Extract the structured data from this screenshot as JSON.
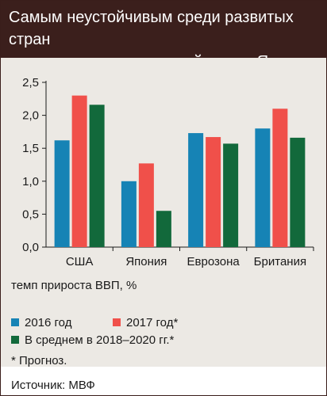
{
  "header": {
    "title": "Самым неустойчивым среди развитых стран\nожидается экономический рост в Японии"
  },
  "chart_data": {
    "type": "bar",
    "categories": [
      "США",
      "Япония",
      "Еврозона",
      "Британия"
    ],
    "series": [
      {
        "name": "2016 год",
        "color": "#1683b5",
        "values": [
          1.62,
          1.0,
          1.73,
          1.8
        ]
      },
      {
        "name": "2017 год*",
        "color": "#f0504a",
        "values": [
          2.3,
          1.27,
          1.67,
          2.1
        ]
      },
      {
        "name": "В среднем в 2018–2020 гг.*",
        "color": "#12693b",
        "values": [
          2.16,
          0.55,
          1.57,
          1.66
        ]
      }
    ],
    "y_ticks": [
      "0,0",
      "0,5",
      "1,0",
      "1,5",
      "2,0",
      "2,5"
    ],
    "ylim": [
      0,
      2.5
    ],
    "ylabel": "темп прироста ВВП, %",
    "grid": false,
    "legend": "bottom-left"
  },
  "notes": {
    "footnote": "* Прогноз.",
    "source": "Источник: МВФ"
  }
}
